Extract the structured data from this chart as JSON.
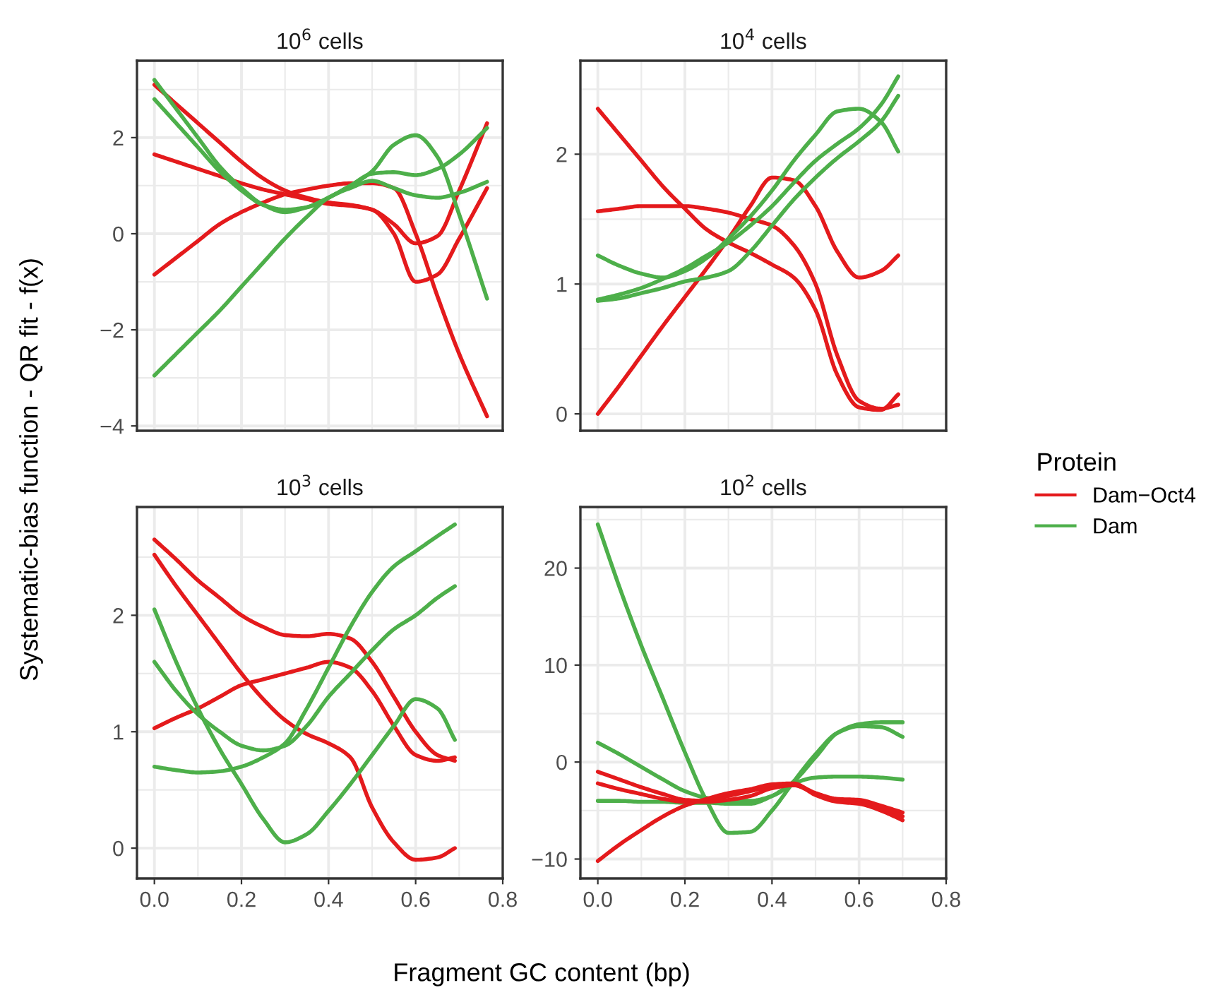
{
  "chart_data": [
    {
      "type": "line",
      "title": "10$^{6}$ cells",
      "ylabel": "Systematic-bias function - QR fit - f(x)",
      "legend_title": "Protein",
      "legend": "right",
      "grid": true,
      "tick_labels": "y",
      "xlim": [
        -0.04,
        0.8
      ],
      "xticks": [
        {
          "value": 0,
          "label": null
        },
        {
          "value": 0.2,
          "label": null
        },
        {
          "value": 0.4,
          "label": null
        },
        {
          "value": 0.6,
          "label": null
        },
        {
          "value": 0.8,
          "label": null
        }
      ],
      "ylim": [
        -4.1,
        3.6
      ],
      "yticks": [
        {
          "value": -4,
          "label": "−4"
        },
        {
          "value": -2,
          "label": "−2"
        },
        0,
        2
      ],
      "x": [
        0,
        0.05,
        0.1,
        0.15,
        0.2,
        0.25,
        0.3,
        0.35,
        0.4,
        0.45,
        0.5,
        0.55,
        0.6,
        0.65,
        0.7,
        0.764
      ],
      "series": [
        {
          "name": "Dam−Oct4",
          "color": "#e41a1c",
          "values": [
            3.1,
            2.7,
            2.3,
            1.9,
            1.5,
            1.15,
            0.9,
            0.75,
            0.65,
            0.6,
            0.5,
            0.2,
            -0.2,
            -0.05,
            0.9,
            2.3
          ]
        },
        {
          "color": "#e41a1c",
          "values": [
            1.65,
            1.5,
            1.35,
            1.2,
            1.05,
            0.92,
            0.82,
            0.72,
            0.62,
            0.58,
            0.5,
            0.0,
            -1.0,
            -0.85,
            -0.1,
            0.95
          ]
        },
        {
          "color": "#e41a1c",
          "values": [
            -0.85,
            -0.5,
            -0.15,
            0.2,
            0.45,
            0.65,
            0.82,
            0.92,
            1.0,
            1.05,
            1.05,
            0.95,
            0.0,
            -1.3,
            -2.5,
            -3.8
          ]
        },
        {
          "name": "Dam",
          "color": "#4daf4a",
          "values": [
            3.2,
            2.6,
            2.0,
            1.4,
            0.95,
            0.6,
            0.45,
            0.55,
            0.75,
            1.0,
            1.25,
            1.28,
            1.22,
            1.35,
            1.65,
            2.2
          ]
        },
        {
          "color": "#4daf4a",
          "values": [
            2.8,
            2.3,
            1.8,
            1.3,
            0.9,
            0.6,
            0.5,
            0.55,
            0.75,
            1.0,
            1.3,
            1.85,
            2.05,
            1.6,
            0.4,
            -1.35
          ]
        },
        {
          "color": "#4daf4a",
          "values": [
            -2.95,
            -2.5,
            -2.05,
            -1.6,
            -1.1,
            -0.6,
            -0.1,
            0.35,
            0.75,
            0.95,
            1.1,
            0.95,
            0.8,
            0.75,
            0.85,
            1.08
          ]
        }
      ]
    },
    {
      "type": "line",
      "title": "10$^{4}$ cells",
      "grid": true,
      "tick_labels": "y",
      "xlim": [
        -0.04,
        0.8
      ],
      "xticks": [
        {
          "value": 0,
          "label": null
        },
        {
          "value": 0.2,
          "label": null
        },
        {
          "value": 0.4,
          "label": null
        },
        {
          "value": 0.6,
          "label": null
        },
        {
          "value": 0.8,
          "label": null
        }
      ],
      "ylim": [
        -0.13,
        2.72
      ],
      "yticks": [
        0,
        1,
        2
      ],
      "x": [
        0,
        0.05,
        0.1,
        0.15,
        0.2,
        0.25,
        0.3,
        0.35,
        0.4,
        0.45,
        0.5,
        0.55,
        0.6,
        0.65,
        0.69
      ],
      "series": [
        {
          "color": "#e41a1c",
          "values": [
            0,
            0.22,
            0.45,
            0.68,
            0.9,
            1.12,
            1.35,
            1.6,
            1.82,
            1.8,
            1.6,
            1.25,
            1.05,
            1.1,
            1.22
          ]
        },
        {
          "color": "#e41a1c",
          "values": [
            2.35,
            2.15,
            1.95,
            1.75,
            1.58,
            1.42,
            1.32,
            1.24,
            1.15,
            1.05,
            0.8,
            0.3,
            0.05,
            0.03,
            0.15
          ]
        },
        {
          "color": "#e41a1c",
          "values": [
            1.56,
            1.58,
            1.6,
            1.6,
            1.6,
            1.58,
            1.55,
            1.5,
            1.45,
            1.3,
            1.0,
            0.45,
            0.1,
            0.04,
            0.07
          ]
        },
        {
          "color": "#4daf4a",
          "values": [
            1.22,
            1.14,
            1.08,
            1.05,
            1.1,
            1.2,
            1.35,
            1.52,
            1.72,
            1.95,
            2.15,
            2.33,
            2.35,
            2.25,
            2.02
          ]
        },
        {
          "color": "#4daf4a",
          "values": [
            0.88,
            0.92,
            0.97,
            1.04,
            1.12,
            1.22,
            1.32,
            1.45,
            1.6,
            1.78,
            1.95,
            2.08,
            2.2,
            2.38,
            2.6
          ]
        },
        {
          "color": "#4daf4a",
          "values": [
            0.87,
            0.89,
            0.93,
            0.97,
            1.02,
            1.05,
            1.1,
            1.25,
            1.45,
            1.65,
            1.82,
            1.97,
            2.1,
            2.25,
            2.45
          ]
        }
      ]
    },
    {
      "type": "line",
      "title": "10$^{3}$ cells",
      "xlabel": "Fragment GC content (bp)",
      "grid": true,
      "xlim": [
        -0.04,
        0.8
      ],
      "xticks": [
        {
          "value": 0,
          "label": "0.0"
        },
        {
          "value": 0.2,
          "label": "0.2"
        },
        {
          "value": 0.4,
          "label": "0.4"
        },
        {
          "value": 0.6,
          "label": "0.6"
        },
        {
          "value": 0.8,
          "label": "0.8"
        }
      ],
      "ylim": [
        -0.26,
        2.93
      ],
      "yticks": [
        0,
        1,
        2
      ],
      "x": [
        0,
        0.05,
        0.1,
        0.15,
        0.2,
        0.25,
        0.3,
        0.35,
        0.4,
        0.45,
        0.5,
        0.55,
        0.6,
        0.65,
        0.69
      ],
      "series": [
        {
          "color": "#e41a1c",
          "values": [
            2.65,
            2.48,
            2.3,
            2.15,
            2.0,
            1.9,
            1.83,
            1.82,
            1.84,
            1.8,
            1.6,
            1.3,
            1.0,
            0.8,
            0.75
          ]
        },
        {
          "color": "#e41a1c",
          "values": [
            2.52,
            2.25,
            2.0,
            1.75,
            1.5,
            1.28,
            1.1,
            0.98,
            0.9,
            0.78,
            0.35,
            0.05,
            -0.1,
            -0.08,
            0.0
          ]
        },
        {
          "color": "#e41a1c",
          "values": [
            1.03,
            1.12,
            1.2,
            1.3,
            1.4,
            1.45,
            1.5,
            1.55,
            1.6,
            1.55,
            1.35,
            1.05,
            0.8,
            0.75,
            0.78
          ]
        },
        {
          "color": "#4daf4a",
          "values": [
            2.05,
            1.6,
            1.2,
            0.85,
            0.55,
            0.25,
            0.05,
            0.12,
            0.32,
            0.55,
            0.8,
            1.05,
            1.28,
            1.2,
            0.93
          ]
        },
        {
          "color": "#4daf4a",
          "values": [
            1.6,
            1.35,
            1.15,
            1.0,
            0.88,
            0.84,
            0.88,
            1.05,
            1.3,
            1.5,
            1.7,
            1.88,
            2.0,
            2.15,
            2.25
          ]
        },
        {
          "color": "#4daf4a",
          "values": [
            0.7,
            0.67,
            0.65,
            0.66,
            0.7,
            0.78,
            0.9,
            1.2,
            1.55,
            1.9,
            2.2,
            2.42,
            2.55,
            2.68,
            2.78
          ]
        }
      ]
    },
    {
      "type": "line",
      "title": "10$^{2}$ cells",
      "grid": true,
      "xlim": [
        -0.04,
        0.8
      ],
      "xticks": [
        {
          "value": 0,
          "label": "0.0"
        },
        {
          "value": 0.2,
          "label": "0.2"
        },
        {
          "value": 0.4,
          "label": "0.4"
        },
        {
          "value": 0.6,
          "label": "0.6"
        },
        {
          "value": 0.8,
          "label": "0.8"
        }
      ],
      "ylim": [
        -12,
        26.3
      ],
      "yticks": [
        {
          "value": -10,
          "label": "−10"
        },
        0,
        10,
        20
      ],
      "x": [
        0,
        0.05,
        0.1,
        0.15,
        0.2,
        0.25,
        0.3,
        0.35,
        0.4,
        0.45,
        0.5,
        0.55,
        0.6,
        0.65,
        0.7
      ],
      "series": [
        {
          "color": "#4daf4a",
          "values": [
            24.5,
            18,
            12,
            6.5,
            1,
            -4,
            -7.3,
            -7.2,
            -5,
            -2,
            0.8,
            3,
            3.7,
            3.6,
            2.6
          ]
        },
        {
          "color": "#4daf4a",
          "values": [
            2,
            0.8,
            -0.5,
            -1.8,
            -3,
            -3.7,
            -4,
            -4,
            -3.5,
            -2,
            0.5,
            3,
            3.9,
            4.1,
            4.1
          ]
        },
        {
          "color": "#4daf4a",
          "values": [
            -4,
            -4,
            -4.1,
            -4.1,
            -4.2,
            -4.2,
            -4.3,
            -4.3,
            -3.5,
            -2.2,
            -1.6,
            -1.5,
            -1.5,
            -1.6,
            -1.8
          ]
        },
        {
          "color": "#e41a1c",
          "values": [
            -1,
            -1.8,
            -2.6,
            -3.3,
            -3.9,
            -4,
            -3.5,
            -3,
            -2.5,
            -2.3,
            -3.2,
            -3.8,
            -3.9,
            -4.5,
            -5.2
          ]
        },
        {
          "color": "#e41a1c",
          "values": [
            -2.2,
            -2.8,
            -3.3,
            -3.8,
            -4.1,
            -4.1,
            -3.9,
            -3.5,
            -2.7,
            -2.4,
            -3.3,
            -4,
            -4.1,
            -4.7,
            -5.6
          ]
        },
        {
          "color": "#e41a1c",
          "values": [
            -10.2,
            -8.5,
            -7,
            -5.6,
            -4.5,
            -3.8,
            -3.2,
            -2.8,
            -2.3,
            -2.2,
            -3.4,
            -4.1,
            -4.3,
            -5,
            -6.0
          ]
        }
      ]
    }
  ]
}
